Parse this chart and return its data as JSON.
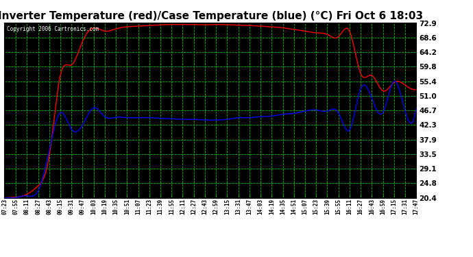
{
  "title": "Inverter Temperature (red)/Case Temperature (blue) (°C) Fri Oct 6 18:03",
  "copyright_text": "Copyright 2006 Cartronics.com",
  "plot_bg_color": "#000000",
  "fig_bg_color": "#ffffff",
  "grid_color": "#00cc00",
  "red_line_color": "#ff0000",
  "blue_line_color": "#0000ff",
  "yticks": [
    20.4,
    24.8,
    29.1,
    33.5,
    37.9,
    42.3,
    46.7,
    51.0,
    55.4,
    59.8,
    64.2,
    68.6,
    72.9
  ],
  "ymin": 20.4,
  "ymax": 72.9,
  "xtick_labels": [
    "07:23",
    "07:55",
    "08:11",
    "08:27",
    "08:43",
    "09:15",
    "09:31",
    "09:47",
    "10:03",
    "10:19",
    "10:35",
    "10:51",
    "11:07",
    "11:23",
    "11:39",
    "11:55",
    "12:11",
    "12:27",
    "12:43",
    "12:59",
    "13:15",
    "13:31",
    "13:47",
    "14:03",
    "14:19",
    "14:35",
    "14:51",
    "15:07",
    "15:23",
    "15:39",
    "15:55",
    "16:11",
    "16:27",
    "16:43",
    "16:59",
    "17:15",
    "17:31",
    "17:47"
  ],
  "red_base": [
    20.4,
    20.6,
    21.5,
    24.0,
    34.0,
    54.0,
    63.5,
    66.5,
    69.5,
    70.5,
    71.2,
    71.8,
    72.0,
    72.2,
    72.4,
    72.5,
    72.5,
    72.5,
    72.4,
    72.5,
    72.4,
    72.3,
    72.2,
    72.0,
    71.8,
    71.5,
    71.0,
    70.5,
    70.0,
    69.5,
    68.8,
    68.0,
    60.0,
    55.5,
    53.5,
    55.0,
    53.5,
    53.0
  ],
  "blue_base": [
    20.4,
    20.5,
    21.0,
    22.5,
    31.0,
    46.5,
    45.0,
    44.0,
    44.5,
    44.8,
    44.6,
    44.5,
    44.5,
    44.5,
    44.3,
    44.2,
    44.0,
    44.0,
    43.8,
    43.8,
    44.0,
    44.5,
    44.5,
    44.8,
    45.0,
    45.5,
    45.8,
    46.5,
    46.8,
    46.5,
    46.0,
    45.8,
    49.5,
    50.2,
    50.0,
    50.5,
    49.0,
    47.5
  ]
}
